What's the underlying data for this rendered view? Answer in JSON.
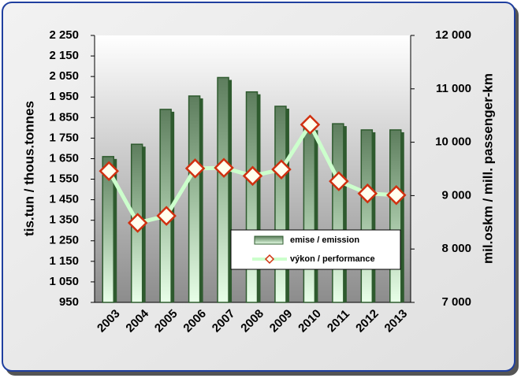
{
  "chart_data": {
    "type": "bar-line",
    "ylabel": "tis.tun / thous.tonnes",
    "y2label": "mil.oskm / mill. passenger-km",
    "categories": [
      "2003",
      "2004",
      "2005",
      "2006",
      "2007",
      "2008",
      "2009",
      "2010",
      "2011",
      "2012",
      "2013"
    ],
    "series": [
      {
        "name": "emise / emission",
        "type": "bar",
        "axis": "y",
        "color": "#2e5a2e",
        "values": [
          1660,
          1720,
          1890,
          1955,
          2045,
          1975,
          1905,
          1800,
          1820,
          1790,
          1790
        ]
      },
      {
        "name": "výkon / performance",
        "type": "line",
        "axis": "y2",
        "color": "#ccffcc",
        "marker_color": "#d03010",
        "values": [
          9460,
          8490,
          8620,
          9510,
          9520,
          9370,
          9490,
          10330,
          9270,
          9040,
          9010
        ]
      }
    ],
    "ylim": [
      950,
      2250
    ],
    "yticks": [
      {
        "value": 950,
        "label": "950"
      },
      {
        "value": 1050,
        "label": "1 050"
      },
      {
        "value": 1150,
        "label": "1 150"
      },
      {
        "value": 1250,
        "label": "1 250"
      },
      {
        "value": 1350,
        "label": "1 350"
      },
      {
        "value": 1450,
        "label": "1 450"
      },
      {
        "value": 1550,
        "label": "1 550"
      },
      {
        "value": 1650,
        "label": "1 650"
      },
      {
        "value": 1750,
        "label": "1 750"
      },
      {
        "value": 1850,
        "label": "1 850"
      },
      {
        "value": 1950,
        "label": "1 950"
      },
      {
        "value": 2050,
        "label": "2 050"
      },
      {
        "value": 2150,
        "label": "2 150"
      },
      {
        "value": 2250,
        "label": "2 250"
      }
    ],
    "y2lim": [
      7000,
      12000
    ],
    "y2ticks": [
      {
        "value": 7000,
        "label": "7 000"
      },
      {
        "value": 8000,
        "label": "8 000"
      },
      {
        "value": 9000,
        "label": "9 000"
      },
      {
        "value": 10000,
        "label": "10 000"
      },
      {
        "value": 11000,
        "label": "11 000"
      },
      {
        "value": 12000,
        "label": "12 000"
      }
    ]
  }
}
